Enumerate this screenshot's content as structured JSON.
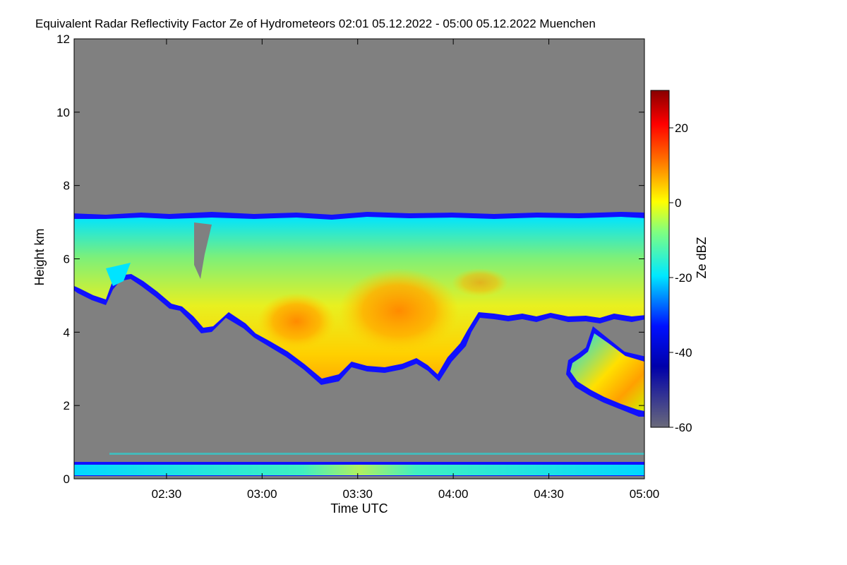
{
  "chart_data": {
    "type": "heatmap",
    "title": "Equivalent Radar Reflectivity Factor Ze of Hydrometeors   02:01 05.12.2022 - 05:00 05.12.2022 Muenchen",
    "xlabel": "Time UTC",
    "ylabel": "Height km",
    "x_ticks": [
      "02:30",
      "03:00",
      "03:30",
      "04:00",
      "04:30",
      "05:00"
    ],
    "y_ticks": [
      "0",
      "2",
      "4",
      "6",
      "8",
      "10",
      "12"
    ],
    "xlim": [
      "02:01",
      "05:00"
    ],
    "ylim": [
      0,
      12
    ],
    "background_color": "#808080",
    "colorbar": {
      "label": "Ze dBZ",
      "ticks": [
        "-60",
        "-40",
        "-20",
        "0",
        "20"
      ],
      "range": [
        -60,
        30
      ],
      "colormap": "jet"
    },
    "features": [
      {
        "name": "upper cloud layer",
        "time_range": [
          "02:01",
          "05:00"
        ],
        "top_km": 7.1,
        "peak_dBZ": 5,
        "peak_time": "03:40",
        "peak_height_km": 4.3
      },
      {
        "name": "low cloud",
        "time_range": [
          "04:40",
          "05:00"
        ],
        "top_km": 3.5,
        "base_km": 1.8,
        "peak_dBZ": 5
      },
      {
        "name": "near-surface layer",
        "time_range": [
          "02:01",
          "05:00"
        ],
        "top_km": 0.45,
        "base_km": 0.0,
        "peak_dBZ": -15
      }
    ]
  }
}
